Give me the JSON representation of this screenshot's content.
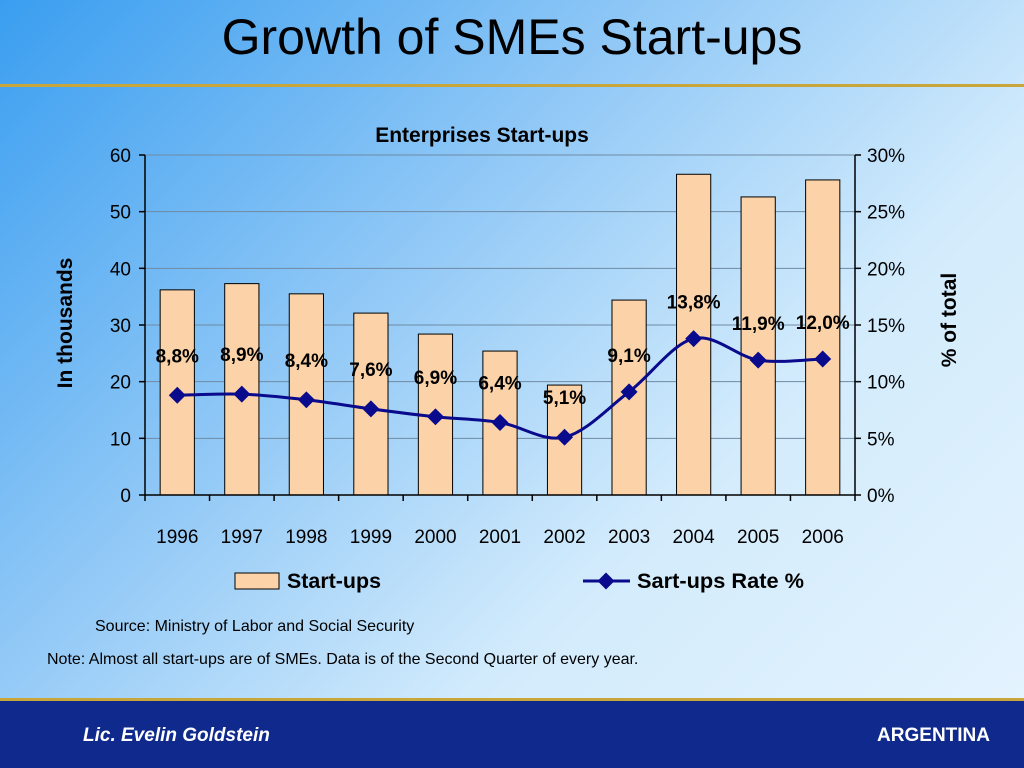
{
  "slide": {
    "title": "Growth of SMEs Start-ups",
    "source": "Source: Ministry of Labor and Social Security",
    "note": "Note: Almost all start-ups are of SMEs. Data is of the Second Quarter of every year.",
    "footer_left": "Lic. Evelin Goldstein",
    "footer_right": "ARGENTINA"
  },
  "chart_data": {
    "type": "bar",
    "title": "Enterprises Start-ups",
    "categories": [
      "1996",
      "1997",
      "1998",
      "1999",
      "2000",
      "2001",
      "2002",
      "2003",
      "2004",
      "2005",
      "2006"
    ],
    "series": [
      {
        "name": "Start-ups",
        "type": "bar",
        "axis": "left",
        "values": [
          36.2,
          37.3,
          35.5,
          32.1,
          28.4,
          25.4,
          19.4,
          34.4,
          56.6,
          52.6,
          55.6
        ],
        "color": "#fcd3a8"
      },
      {
        "name": "Sart-ups Rate %",
        "type": "line",
        "axis": "right",
        "values": [
          8.8,
          8.9,
          8.4,
          7.6,
          6.9,
          6.4,
          5.1,
          9.1,
          13.8,
          11.9,
          12.0
        ],
        "labels": [
          "8,8%",
          "8,9%",
          "8,4%",
          "7,6%",
          "6,9%",
          "6,4%",
          "5,1%",
          "9,1%",
          "13,8%",
          "11,9%",
          "12,0%"
        ],
        "color": "#0a0a8c"
      }
    ],
    "ylabel": "In thousands",
    "y2label": "% of total",
    "ylim": [
      0,
      60
    ],
    "y2lim": [
      0,
      30
    ],
    "yticks": [
      "0",
      "10",
      "20",
      "30",
      "40",
      "50",
      "60"
    ],
    "y2ticks": [
      "0%",
      "5%",
      "10%",
      "15%",
      "20%",
      "25%",
      "30%"
    ],
    "grid": true,
    "legend": "bottom"
  }
}
